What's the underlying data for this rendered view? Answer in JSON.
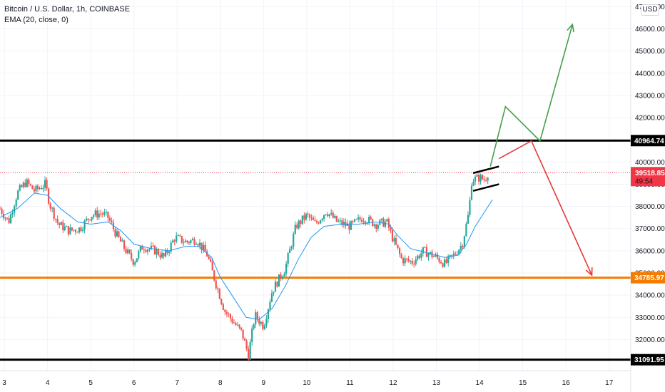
{
  "legend": {
    "title": "Bitcoin / U.S. Dollar, 1h, COINBASE",
    "indicator": "EMA (20, close, 0)"
  },
  "currency_button": "USD",
  "chart_data": {
    "type": "candlestick",
    "symbol": "Bitcoin / U.S. Dollar",
    "interval": "1h",
    "exchange": "COINBASE",
    "y_axis": {
      "range": [
        30600,
        47300
      ],
      "ticks": [
        "32000.00",
        "33000.00",
        "34000.00",
        "35000.00",
        "36000.00",
        "37000.00",
        "38000.00",
        "39000.00",
        "40000.00",
        "41000.00",
        "42000.00",
        "43000.00",
        "44000.00",
        "45000.00",
        "46000.00",
        "47000.00"
      ]
    },
    "x_axis": {
      "range": [
        2.9,
        17.5
      ],
      "ticks": [
        {
          "value": 3,
          "label": "3"
        },
        {
          "value": 4,
          "label": "4"
        },
        {
          "value": 5,
          "label": "5"
        },
        {
          "value": 6,
          "label": "6"
        },
        {
          "value": 7,
          "label": "7"
        },
        {
          "value": 8,
          "label": "8"
        },
        {
          "value": 9,
          "label": "9"
        },
        {
          "value": 10,
          "label": "10"
        },
        {
          "value": 11,
          "label": "11"
        },
        {
          "value": 12,
          "label": "12"
        },
        {
          "value": 13,
          "label": "13"
        },
        {
          "value": 14,
          "label": "14"
        },
        {
          "value": 15,
          "label": "15"
        },
        {
          "value": 16,
          "label": "16"
        },
        {
          "value": 17,
          "label": "17"
        }
      ]
    },
    "price_path": [
      [
        2.9,
        37900
      ],
      [
        3.1,
        37300
      ],
      [
        3.3,
        38600
      ],
      [
        3.5,
        39100
      ],
      [
        3.7,
        38700
      ],
      [
        3.95,
        39000
      ],
      [
        4.05,
        38100
      ],
      [
        4.25,
        37200
      ],
      [
        4.5,
        36900
      ],
      [
        4.75,
        37000
      ],
      [
        5.0,
        37600
      ],
      [
        5.25,
        37700
      ],
      [
        5.4,
        37500
      ],
      [
        5.6,
        36700
      ],
      [
        5.85,
        35900
      ],
      [
        6.0,
        35500
      ],
      [
        6.2,
        36200
      ],
      [
        6.5,
        36000
      ],
      [
        6.7,
        35700
      ],
      [
        6.95,
        36600
      ],
      [
        7.2,
        36400
      ],
      [
        7.45,
        36500
      ],
      [
        7.7,
        35800
      ],
      [
        7.9,
        34500
      ],
      [
        8.1,
        33300
      ],
      [
        8.3,
        32800
      ],
      [
        8.5,
        32300
      ],
      [
        8.65,
        31300
      ],
      [
        8.8,
        33100
      ],
      [
        9.0,
        32600
      ],
      [
        9.2,
        34200
      ],
      [
        9.5,
        35200
      ],
      [
        9.75,
        37100
      ],
      [
        10.0,
        37600
      ],
      [
        10.2,
        37200
      ],
      [
        10.45,
        37800
      ],
      [
        10.7,
        37300
      ],
      [
        11.0,
        37100
      ],
      [
        11.3,
        37500
      ],
      [
        11.6,
        37200
      ],
      [
        11.85,
        37300
      ],
      [
        12.0,
        36500
      ],
      [
        12.2,
        35600
      ],
      [
        12.45,
        35500
      ],
      [
        12.7,
        36000
      ],
      [
        13.0,
        35700
      ],
      [
        13.2,
        35400
      ],
      [
        13.4,
        35800
      ],
      [
        13.6,
        36300
      ],
      [
        13.75,
        37700
      ],
      [
        13.82,
        39200
      ],
      [
        14.0,
        39300
      ],
      [
        14.12,
        39200
      ],
      [
        14.2,
        39520
      ]
    ],
    "ema_path": [
      [
        2.9,
        37500
      ],
      [
        3.3,
        37900
      ],
      [
        3.7,
        38600
      ],
      [
        4.0,
        38500
      ],
      [
        4.3,
        37900
      ],
      [
        4.7,
        37300
      ],
      [
        5.0,
        37200
      ],
      [
        5.4,
        37300
      ],
      [
        5.7,
        36900
      ],
      [
        6.0,
        36300
      ],
      [
        6.4,
        36100
      ],
      [
        6.8,
        36000
      ],
      [
        7.2,
        36200
      ],
      [
        7.5,
        36200
      ],
      [
        7.8,
        35700
      ],
      [
        8.0,
        34800
      ],
      [
        8.3,
        33900
      ],
      [
        8.6,
        33000
      ],
      [
        8.9,
        32900
      ],
      [
        9.2,
        33400
      ],
      [
        9.5,
        34400
      ],
      [
        9.8,
        35600
      ],
      [
        10.1,
        36600
      ],
      [
        10.4,
        37100
      ],
      [
        10.8,
        37200
      ],
      [
        11.2,
        37200
      ],
      [
        11.6,
        37300
      ],
      [
        11.9,
        37200
      ],
      [
        12.1,
        36700
      ],
      [
        12.4,
        36100
      ],
      [
        12.8,
        35900
      ],
      [
        13.2,
        35700
      ],
      [
        13.5,
        35800
      ],
      [
        13.7,
        36300
      ],
      [
        13.9,
        37100
      ],
      [
        14.1,
        37700
      ],
      [
        14.3,
        38300
      ]
    ],
    "levels": [
      {
        "name": "resistance",
        "value": 40964.74,
        "label": "40964.74",
        "color": "#000000"
      },
      {
        "name": "support",
        "value": 34785.97,
        "label": "34785.97",
        "color": "#f57c00"
      },
      {
        "name": "low",
        "value": 31091.95,
        "label": "31091.95",
        "color": "#000000"
      }
    ],
    "current_price": {
      "value": 39518.85,
      "label": "39518.85",
      "countdown": "49:54",
      "color": "#f23645"
    },
    "flag_pattern": {
      "upper": [
        [
          13.85,
          39500
        ],
        [
          14.45,
          39800
        ]
      ],
      "lower": [
        [
          13.85,
          38700
        ],
        [
          14.45,
          39000
        ]
      ]
    },
    "bullish_projection": {
      "color": "#43a047",
      "points": [
        [
          14.25,
          39800
        ],
        [
          14.6,
          42500
        ],
        [
          15.4,
          40950
        ],
        [
          16.15,
          46200
        ]
      ]
    },
    "bearish_projection": {
      "color": "#e53935",
      "points": [
        [
          14.45,
          40150
        ],
        [
          15.2,
          40950
        ],
        [
          16.6,
          34900
        ]
      ]
    }
  }
}
